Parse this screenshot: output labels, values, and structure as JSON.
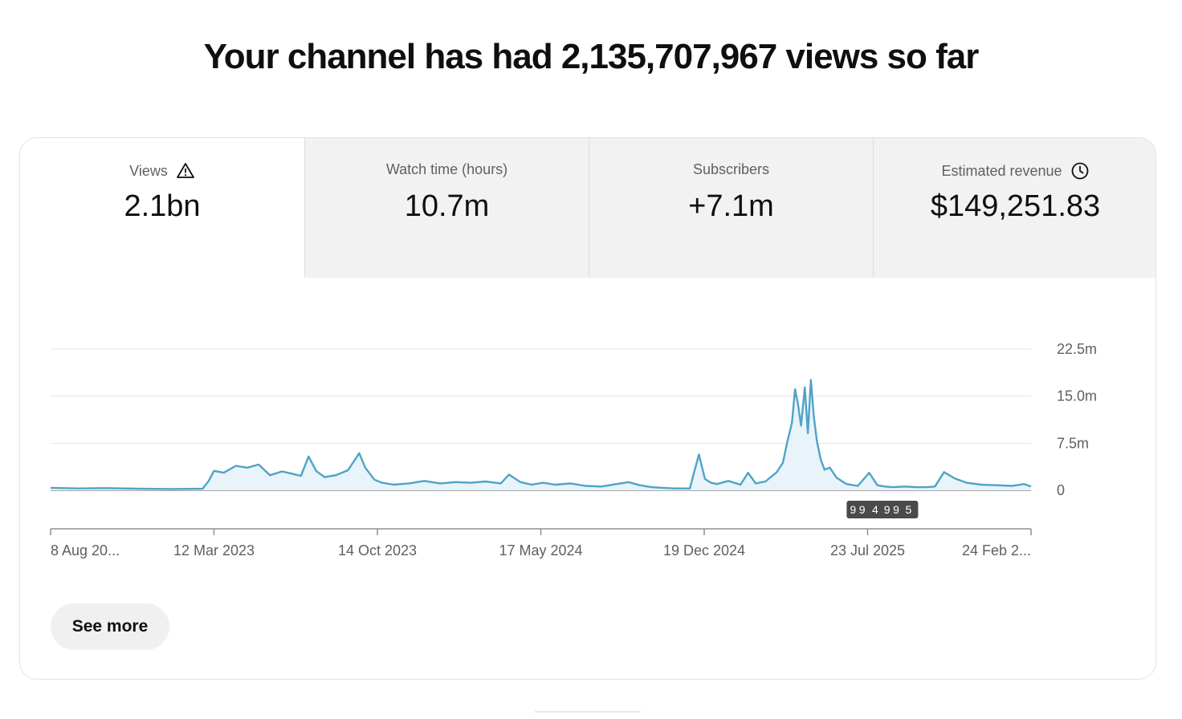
{
  "headline": "Your channel has had 2,135,707,967 views so far",
  "tabs": [
    {
      "title": "Views",
      "value": "2.1bn",
      "icon": "warning-icon",
      "active": true
    },
    {
      "title": "Watch time (hours)",
      "value": "10.7m",
      "icon": null,
      "active": false
    },
    {
      "title": "Subscribers",
      "value": "+7.1m",
      "icon": null,
      "active": false
    },
    {
      "title": "Estimated revenue",
      "value": "$149,251.83",
      "icon": "clock-icon",
      "active": false
    }
  ],
  "see_more_label": "See more",
  "colors": {
    "line": "#4fa3c7",
    "area": "#e8f4fa",
    "badge": "#4a4a4a"
  },
  "chart_data": {
    "type": "area",
    "y_ticks": [
      "22.5m",
      "15.0m",
      "7.5m",
      "0"
    ],
    "ylim": [
      0,
      22500000
    ],
    "x_tick_labels": [
      "8 Aug 20...",
      "12 Mar 2023",
      "14 Oct 2023",
      "17 May 2024",
      "19 Dec 2024",
      "23 Jul 2025",
      "24 Feb 2..."
    ],
    "x_range": [
      "2022-08-08",
      "2026-02-24"
    ],
    "badges": [
      {
        "label": "9+",
        "date": "2025-07-08"
      },
      {
        "label": "9+",
        "date": "2025-07-20"
      },
      {
        "label": "4",
        "date": "2025-08-02"
      },
      {
        "label": "9+",
        "date": "2025-08-22"
      },
      {
        "label": "9+",
        "date": "2025-09-03"
      },
      {
        "label": "5",
        "date": "2025-09-15"
      }
    ],
    "series": [
      {
        "x": [
          "2022-08-08",
          "2022-09-15",
          "2022-10-20",
          "2022-12-01",
          "2023-01-15",
          "2023-02-25",
          "2023-03-05",
          "2023-03-12",
          "2023-03-25",
          "2023-04-10",
          "2023-04-25",
          "2023-05-10",
          "2023-05-25",
          "2023-06-10",
          "2023-06-25",
          "2023-07-05",
          "2023-07-15",
          "2023-07-25",
          "2023-08-05",
          "2023-08-20",
          "2023-09-05",
          "2023-09-20",
          "2023-09-28",
          "2023-10-10",
          "2023-10-20",
          "2023-11-05",
          "2023-11-25",
          "2023-12-15",
          "2024-01-05",
          "2024-01-25",
          "2024-02-15",
          "2024-03-05",
          "2024-03-25",
          "2024-04-05",
          "2024-04-20",
          "2024-05-05",
          "2024-05-20",
          "2024-06-05",
          "2024-06-25",
          "2024-07-15",
          "2024-08-05",
          "2024-08-25",
          "2024-09-10",
          "2024-09-25",
          "2024-10-10",
          "2024-10-25",
          "2024-11-10",
          "2024-11-30",
          "2024-12-05",
          "2024-12-12",
          "2024-12-20",
          "2024-12-28",
          "2025-01-05",
          "2025-01-20",
          "2025-02-05",
          "2025-02-15",
          "2025-02-25",
          "2025-03-10",
          "2025-03-25",
          "2025-04-02",
          "2025-04-08",
          "2025-04-14",
          "2025-04-18",
          "2025-04-22",
          "2025-04-26",
          "2025-05-01",
          "2025-05-05",
          "2025-05-09",
          "2025-05-13",
          "2025-05-17",
          "2025-05-22",
          "2025-05-27",
          "2025-06-03",
          "2025-06-12",
          "2025-06-25",
          "2025-07-10",
          "2025-07-25",
          "2025-08-05",
          "2025-08-15",
          "2025-08-25",
          "2025-09-10",
          "2025-09-25",
          "2025-10-10",
          "2025-10-20",
          "2025-11-01",
          "2025-11-15",
          "2025-12-01",
          "2025-12-20",
          "2026-01-10",
          "2026-01-30",
          "2026-02-15",
          "2026-02-24"
        ],
        "y": [
          400000,
          300000,
          350000,
          250000,
          200000,
          250000,
          1500000,
          3100000,
          2800000,
          3900000,
          3600000,
          4100000,
          2400000,
          3000000,
          2600000,
          2300000,
          5400000,
          3100000,
          2100000,
          2400000,
          3200000,
          5900000,
          3600000,
          1700000,
          1200000,
          900000,
          1100000,
          1500000,
          1100000,
          1300000,
          1200000,
          1400000,
          1100000,
          2500000,
          1300000,
          900000,
          1200000,
          900000,
          1100000,
          700000,
          600000,
          1000000,
          1300000,
          800000,
          500000,
          400000,
          300000,
          300000,
          2600000,
          5700000,
          1800000,
          1200000,
          1000000,
          1500000,
          900000,
          2800000,
          1100000,
          1400000,
          2900000,
          4400000,
          7800000,
          10800000,
          16100000,
          13700000,
          10300000,
          16400000,
          9100000,
          17600000,
          11600000,
          7800000,
          4900000,
          3300000,
          3600000,
          2000000,
          1000000,
          700000,
          2800000,
          800000,
          600000,
          500000,
          600000,
          500000,
          500000,
          600000,
          2900000,
          1900000,
          1200000,
          900000,
          800000,
          700000,
          1000000,
          600000
        ]
      }
    ]
  }
}
